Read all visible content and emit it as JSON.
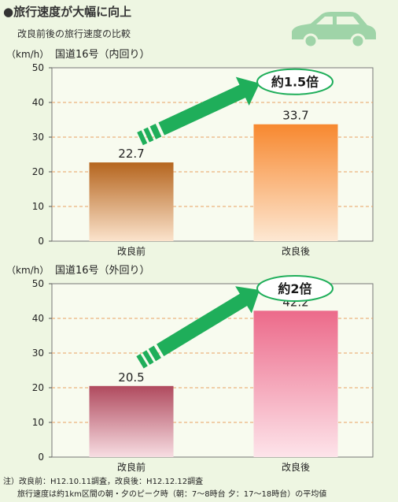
{
  "header": {
    "title": "●旅行速度が大幅に向上",
    "subtitle": "改良前後の旅行速度の比較"
  },
  "icons": {
    "car": "car-icon"
  },
  "colors": {
    "background": "#eef6e2",
    "grid_dash": "#e8a060",
    "arrow": "#1fae5a",
    "badge_border": "#1fae5a"
  },
  "chart_data": [
    {
      "type": "bar",
      "title": "国道16号（内回り）",
      "unit": "（km/h）",
      "categories": [
        "改良前",
        "改良後"
      ],
      "values": [
        22.7,
        33.7
      ],
      "labels": [
        "22.7",
        "33.7"
      ],
      "ylim": [
        0,
        50
      ],
      "yticks": [
        0,
        10,
        20,
        30,
        40,
        50
      ],
      "grid": true,
      "callout": "約1.5倍",
      "bar_colors": [
        [
          "#b5651e",
          "#fbe3cc"
        ],
        [
          "#f7882f",
          "#fde8d3"
        ]
      ]
    },
    {
      "type": "bar",
      "title": "国道16号（外回り）",
      "unit": "（km/h）",
      "categories": [
        "改良前",
        "改良後"
      ],
      "values": [
        20.5,
        42.2
      ],
      "labels": [
        "20.5",
        "42.2"
      ],
      "ylim": [
        0,
        50
      ],
      "yticks": [
        0,
        10,
        20,
        30,
        40,
        50
      ],
      "grid": true,
      "callout": "約2倍",
      "bar_colors": [
        [
          "#b04a5e",
          "#f7dde2"
        ],
        [
          "#ec6a8a",
          "#fde4ea"
        ]
      ]
    }
  ],
  "footnote": {
    "line1": "注）改良前：H12.10.11調査，改良後：H12.12.12調査",
    "line2": "旅行速度は約1km区間の朝・夕のピーク時（朝：7～8時台 夕：17～18時台）の平均値"
  }
}
